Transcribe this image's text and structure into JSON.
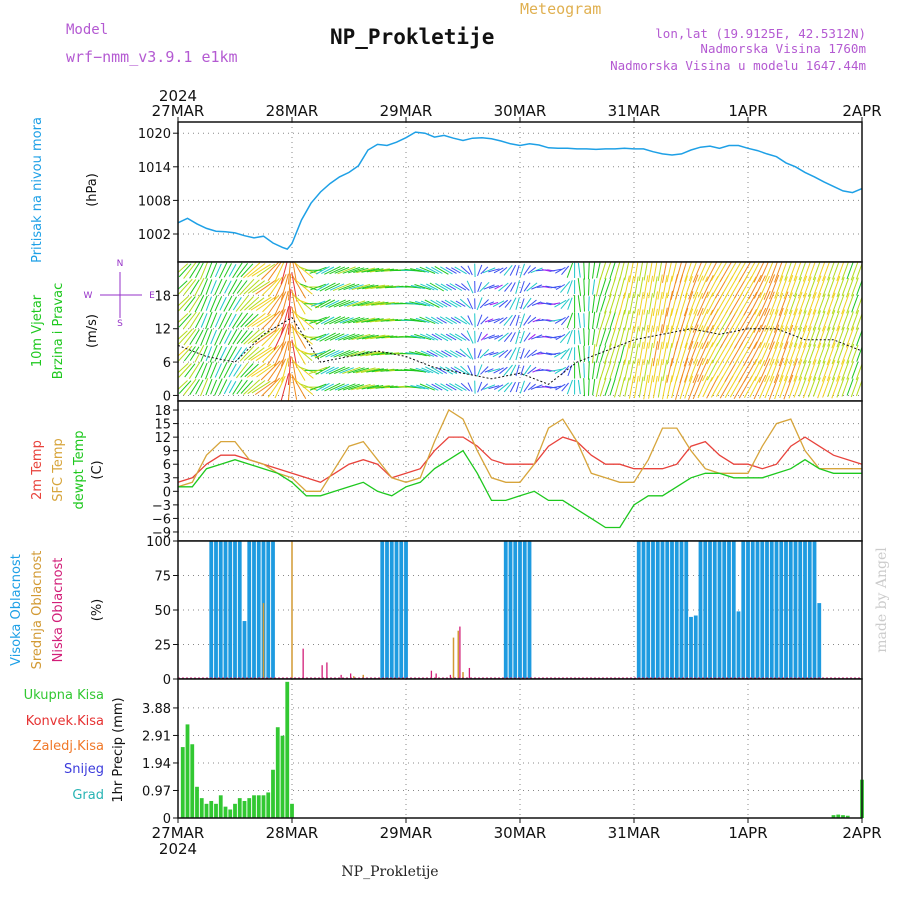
{
  "header": {
    "model_label": "Model",
    "model_name": "wrf−nmm_v3.9.1  e1km",
    "title": "NP_Prokletije",
    "subtitle": "Meteogram",
    "coords": "lon,lat (19.9125E, 42.5312N)",
    "altitude": "Nadmorska Visina 1760m",
    "model_altitude": "Nadmorska Visina u modelu 1647.44m",
    "footer": "NP_Prokletije",
    "watermark": "made by Angel",
    "year_top": "2024",
    "year_bottom": "2024"
  },
  "colors": {
    "pressure": "#1ea0e6",
    "t2m": "#e8433c",
    "sfc": "#d7a53c",
    "dewpt": "#1ec81e",
    "high_cloud": "#1e9be0",
    "mid_cloud": "#d29a34",
    "low_cloud": "#d21e78",
    "precip": "#32c832",
    "conv": "#e63232",
    "frz": "#f07828",
    "snow": "#3c3cdc",
    "grad": "#28b4b4",
    "wind_label": "#9632c8"
  },
  "chart_data": [
    {
      "type": "line",
      "name": "pressure",
      "ylabel_main": "Pritisak na nivou mora",
      "ylabel_unit": "(hPa)",
      "xticks": [
        "27MAR",
        "28MAR",
        "29MAR",
        "30MAR",
        "31MAR",
        "1APR",
        "2APR"
      ],
      "xlim": [
        0,
        144
      ],
      "ylim": [
        997,
        1022
      ],
      "yticks": [
        1002,
        1008,
        1014,
        1020
      ],
      "x": [
        0,
        2,
        4,
        6,
        8,
        10,
        12,
        14,
        16,
        18,
        20,
        22,
        23,
        24,
        26,
        28,
        30,
        32,
        34,
        36,
        38,
        40,
        42,
        44,
        46,
        48,
        50,
        52,
        54,
        56,
        58,
        60,
        62,
        64,
        66,
        68,
        70,
        72,
        74,
        76,
        78,
        80,
        82,
        84,
        86,
        88,
        90,
        92,
        94,
        96,
        98,
        100,
        102,
        104,
        106,
        108,
        110,
        112,
        114,
        116,
        118,
        120,
        122,
        124,
        126,
        128,
        130,
        132,
        134,
        136,
        138,
        140,
        142,
        144
      ],
      "series": [
        {
          "values": [
            1004,
            1004.8,
            1003.8,
            1003,
            1002.5,
            1002.4,
            1002.2,
            1001.7,
            1001.3,
            1001.6,
            1000.4,
            999.6,
            999.3,
            1000.3,
            1004.5,
            1007.5,
            1009.5,
            1011,
            1012.2,
            1013,
            1014.2,
            1017,
            1018,
            1017.8,
            1018.4,
            1019.2,
            1020.2,
            1020,
            1019.3,
            1019.6,
            1019.1,
            1018.7,
            1019.1,
            1019.2,
            1019,
            1018.6,
            1018.1,
            1017.8,
            1018.1,
            1017.9,
            1017.4,
            1017.3,
            1017.3,
            1017.2,
            1017.2,
            1017.1,
            1017.2,
            1017.2,
            1017.3,
            1017.2,
            1017.2,
            1016.7,
            1016.3,
            1016.1,
            1016.3,
            1017,
            1017.5,
            1017.7,
            1017.3,
            1017.8,
            1017.8,
            1017.3,
            1016.9,
            1016.3,
            1015.8,
            1014.7,
            1014,
            1013,
            1012.2,
            1011.3,
            1010.5,
            1009.7,
            1009.4,
            1010.1
          ]
        }
      ]
    },
    {
      "type": "vector",
      "name": "wind",
      "ylabel_main": "10m Vjetar",
      "ylabel_sub": "Brzina i Pravac",
      "ylabel_unit": "(m/s)",
      "legend_e": "E",
      "legend_n": "N",
      "legend_w": "W",
      "legend_s": "S",
      "ylim": [
        -1,
        24
      ],
      "yticks": [
        0,
        6,
        12,
        18
      ],
      "x": [
        0,
        6,
        12,
        18,
        24,
        30,
        36,
        42,
        48,
        54,
        60,
        66,
        72,
        78,
        84,
        90,
        96,
        102,
        108,
        114,
        120,
        126,
        132,
        138,
        144
      ],
      "speed": [
        9,
        7,
        6,
        11,
        14,
        6,
        7,
        8,
        7,
        5,
        4,
        3,
        4,
        2,
        6,
        8,
        10,
        11,
        12,
        11,
        12,
        12,
        10,
        10,
        8
      ],
      "direction_deg": [
        230,
        200,
        210,
        240,
        180,
        60,
        70,
        80,
        90,
        120,
        120,
        260,
        190,
        290,
        170,
        200,
        190,
        190,
        200,
        210,
        210,
        200,
        200,
        200,
        200
      ]
    },
    {
      "type": "line",
      "name": "temperature",
      "ylabel_t2m": "2m Temp",
      "ylabel_sfc": "SFC Temp",
      "ylabel_dew": "dewpt Temp",
      "ylabel_unit": "(C)",
      "ylim": [
        -11,
        20
      ],
      "yticks": [
        -9,
        -6,
        -3,
        0,
        3,
        6,
        9,
        12,
        15,
        18
      ],
      "x": [
        0,
        3,
        6,
        9,
        12,
        15,
        18,
        21,
        24,
        27,
        30,
        33,
        36,
        39,
        42,
        45,
        48,
        51,
        54,
        57,
        60,
        63,
        66,
        69,
        72,
        75,
        78,
        81,
        84,
        87,
        90,
        93,
        96,
        99,
        102,
        105,
        108,
        111,
        114,
        117,
        120,
        123,
        126,
        129,
        132,
        135,
        138,
        141,
        144
      ],
      "series": [
        {
          "values": [
            2,
            3,
            6,
            8,
            8,
            7,
            6,
            5,
            4,
            3,
            2,
            4,
            6,
            7,
            6,
            3,
            4,
            5,
            9,
            12,
            12,
            10,
            7,
            6,
            6,
            6,
            10,
            12,
            11,
            8,
            6,
            6,
            5,
            5,
            5,
            6,
            10,
            11,
            8,
            6,
            6,
            5,
            6,
            10,
            12,
            10,
            8,
            7,
            6
          ]
        },
        {
          "values": [
            1,
            2,
            8,
            11,
            11,
            7,
            6,
            4,
            3,
            0,
            0,
            5,
            10,
            11,
            7,
            3,
            2,
            3,
            11,
            18,
            16,
            9,
            3,
            2,
            2,
            6,
            14,
            16,
            11,
            4,
            3,
            2,
            2,
            7,
            14,
            14,
            9,
            5,
            4,
            4,
            4,
            10,
            15,
            16,
            9,
            5,
            5,
            5,
            5
          ]
        },
        {
          "values": [
            1,
            1,
            5,
            6,
            7,
            6,
            5,
            4,
            2,
            -1,
            -1,
            0,
            1,
            2,
            0,
            -1,
            1,
            2,
            5,
            7,
            9,
            4,
            -2,
            -2,
            -1,
            0,
            -2,
            -2,
            -4,
            -6,
            -8,
            -8,
            -3,
            -1,
            -1,
            1,
            3,
            4,
            4,
            3,
            3,
            3,
            4,
            5,
            7,
            5,
            4,
            4,
            4
          ]
        }
      ]
    },
    {
      "type": "bar",
      "name": "clouds",
      "ylabel_high": "Visoka Oblacnost",
      "ylabel_mid": "Srednja Oblacnost",
      "ylabel_low": "Niska Oblacnost",
      "ylabel_unit": "(%)",
      "ylim": [
        0,
        100
      ],
      "yticks": [
        0,
        25,
        50,
        75,
        100
      ],
      "high_hours": [
        7,
        8,
        9,
        10,
        11,
        12,
        13,
        14,
        15,
        16,
        17,
        18,
        19,
        20,
        43,
        44,
        45,
        46,
        47,
        48,
        69,
        70,
        71,
        72,
        73,
        74,
        97,
        98,
        99,
        100,
        101,
        102,
        103,
        104,
        105,
        106,
        107,
        108,
        109,
        110,
        111,
        112,
        113,
        114,
        115,
        116,
        117,
        118,
        119,
        120,
        121,
        122,
        123,
        124,
        125,
        126,
        127,
        128,
        129,
        130,
        131,
        132,
        133,
        134,
        135
      ],
      "high_values": [
        100,
        100,
        100,
        100,
        100,
        100,
        100,
        42,
        100,
        100,
        100,
        100,
        100,
        100,
        100,
        100,
        100,
        100,
        100,
        100,
        100,
        100,
        100,
        100,
        100,
        100,
        100,
        100,
        100,
        100,
        100,
        100,
        100,
        100,
        100,
        100,
        100,
        45,
        46,
        100,
        100,
        100,
        100,
        100,
        100,
        100,
        100,
        49,
        100,
        100,
        100,
        100,
        100,
        100,
        100,
        100,
        100,
        100,
        100,
        100,
        100,
        100,
        100,
        100,
        55
      ],
      "mid_hours": [
        18,
        24,
        37,
        39,
        58,
        59,
        60
      ],
      "mid_values": [
        55,
        100,
        2,
        3,
        30,
        35,
        5
      ],
      "low_hours": [
        26,
        30,
        31,
        34,
        36,
        53,
        54,
        57,
        59,
        61
      ],
      "low_values": [
        22,
        10,
        12,
        3,
        4,
        6,
        4,
        3,
        38,
        8
      ]
    },
    {
      "type": "bar",
      "name": "precipitation",
      "ylabel_total": "Ukupna Kisa",
      "ylabel_conv": "Konvek.Kisa",
      "ylabel_frz": "Zaledj.Kisa",
      "ylabel_snow": "Snijeg",
      "ylabel_grad": "Grad",
      "ylabel_unit": "1hr Precip (mm)",
      "ylim": [
        0,
        4.9
      ],
      "yticks": [
        "0",
        "0.97",
        "1.94",
        "2.91",
        "3.88"
      ],
      "ytick_values": [
        0,
        0.97,
        1.94,
        2.91,
        3.88
      ],
      "hours": [
        1,
        2,
        3,
        4,
        5,
        6,
        7,
        8,
        9,
        10,
        11,
        12,
        13,
        14,
        15,
        16,
        17,
        18,
        19,
        20,
        21,
        22,
        23,
        24,
        25,
        138,
        139,
        140,
        141,
        144
      ],
      "values": [
        2.5,
        3.3,
        2.6,
        1.1,
        0.7,
        0.5,
        0.6,
        0.5,
        0.8,
        0.4,
        0.3,
        0.5,
        0.7,
        0.6,
        0.7,
        0.8,
        0.8,
        0.8,
        0.9,
        1.7,
        3.2,
        2.9,
        4.8,
        0.5,
        0.0,
        0.1,
        0.12,
        0.1,
        0.08,
        1.35
      ]
    }
  ]
}
